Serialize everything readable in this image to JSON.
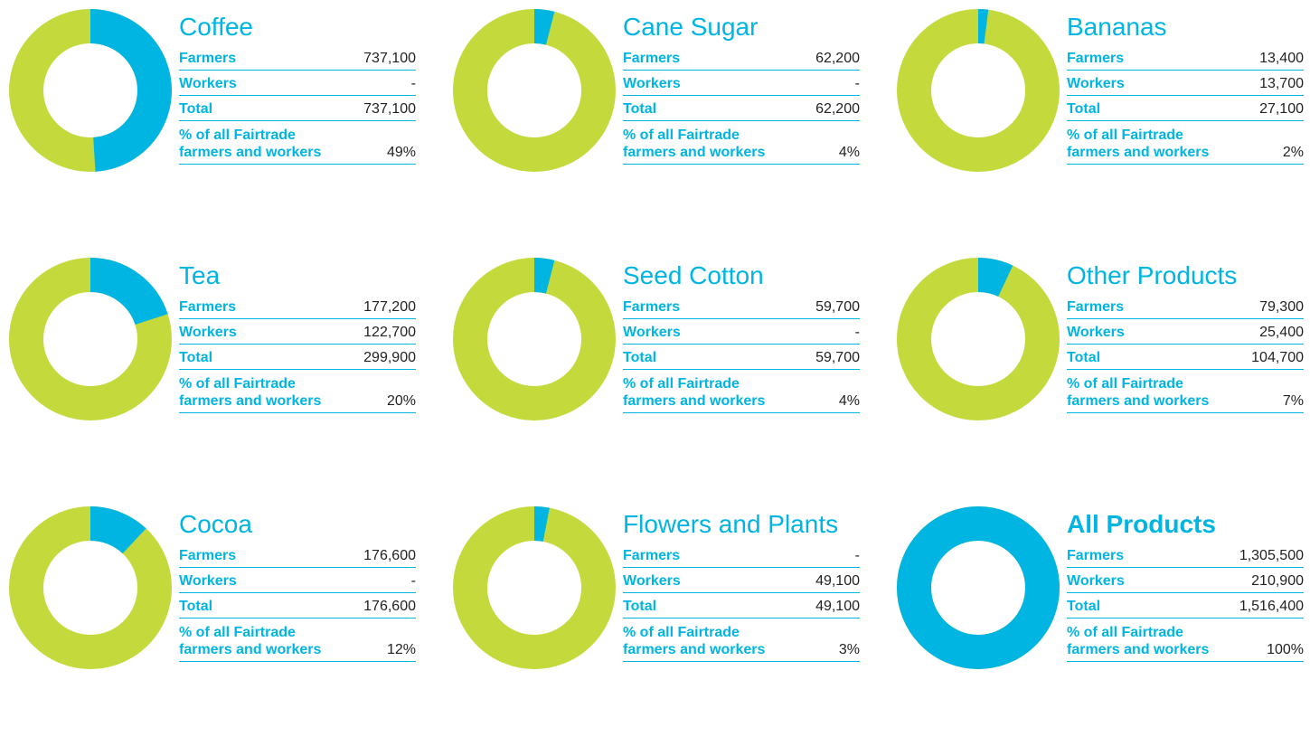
{
  "chart_data": [
    {
      "type": "donut",
      "title": "Coffee",
      "rows": [
        {
          "label": "Farmers",
          "value": "737,100"
        },
        {
          "label": "Workers",
          "value": "-"
        },
        {
          "label": "Total",
          "value": "737,100"
        }
      ],
      "share_label": "% of all Fairtrade farmers and workers",
      "values": [
        49
      ],
      "value_labels": [
        "49%"
      ],
      "colors": [
        "#00b5e2",
        "#c4d93c"
      ]
    },
    {
      "type": "donut",
      "title": "Cane Sugar",
      "rows": [
        {
          "label": "Farmers",
          "value": "62,200"
        },
        {
          "label": "Workers",
          "value": "-"
        },
        {
          "label": "Total",
          "value": "62,200"
        }
      ],
      "share_label": "% of all Fairtrade farmers and workers",
      "values": [
        4
      ],
      "value_labels": [
        "4%"
      ],
      "colors": [
        "#00b5e2",
        "#c4d93c"
      ]
    },
    {
      "type": "donut",
      "title": "Bananas",
      "rows": [
        {
          "label": "Farmers",
          "value": "13,400"
        },
        {
          "label": "Workers",
          "value": "13,700"
        },
        {
          "label": "Total",
          "value": "27,100"
        }
      ],
      "share_label": "% of all Fairtrade farmers and workers",
      "values": [
        2
      ],
      "value_labels": [
        "2%"
      ],
      "colors": [
        "#00b5e2",
        "#c4d93c"
      ]
    },
    {
      "type": "donut",
      "title": "Tea",
      "rows": [
        {
          "label": "Farmers",
          "value": "177,200"
        },
        {
          "label": "Workers",
          "value": "122,700"
        },
        {
          "label": "Total",
          "value": "299,900"
        }
      ],
      "share_label": "% of all Fairtrade farmers and workers",
      "values": [
        20
      ],
      "value_labels": [
        "20%"
      ],
      "colors": [
        "#00b5e2",
        "#c4d93c"
      ]
    },
    {
      "type": "donut",
      "title": "Seed Cotton",
      "rows": [
        {
          "label": "Farmers",
          "value": "59,700"
        },
        {
          "label": "Workers",
          "value": "-"
        },
        {
          "label": "Total",
          "value": "59,700"
        }
      ],
      "share_label": "% of all Fairtrade farmers and workers",
      "values": [
        4
      ],
      "value_labels": [
        "4%"
      ],
      "colors": [
        "#00b5e2",
        "#c4d93c"
      ]
    },
    {
      "type": "donut",
      "title": "Other Products",
      "rows": [
        {
          "label": "Farmers",
          "value": "79,300"
        },
        {
          "label": "Workers",
          "value": "25,400"
        },
        {
          "label": "Total",
          "value": "104,700"
        }
      ],
      "share_label": "% of all Fairtrade farmers and workers",
      "values": [
        7
      ],
      "value_labels": [
        "7%"
      ],
      "colors": [
        "#00b5e2",
        "#c4d93c"
      ]
    },
    {
      "type": "donut",
      "title": "Cocoa",
      "rows": [
        {
          "label": "Farmers",
          "value": "176,600"
        },
        {
          "label": "Workers",
          "value": "-"
        },
        {
          "label": "Total",
          "value": "176,600"
        }
      ],
      "share_label": "% of all Fairtrade farmers and workers",
      "values": [
        12
      ],
      "value_labels": [
        "12%"
      ],
      "colors": [
        "#00b5e2",
        "#c4d93c"
      ]
    },
    {
      "type": "donut",
      "title": "Flowers and Plants",
      "rows": [
        {
          "label": "Farmers",
          "value": "-"
        },
        {
          "label": "Workers",
          "value": "49,100"
        },
        {
          "label": "Total",
          "value": "49,100"
        }
      ],
      "share_label": "% of all Fairtrade farmers and workers",
      "values": [
        3
      ],
      "value_labels": [
        "3%"
      ],
      "colors": [
        "#00b5e2",
        "#c4d93c"
      ]
    },
    {
      "type": "donut",
      "title": "All Products",
      "title_bold": true,
      "rows": [
        {
          "label": "Farmers",
          "value": "1,305,500"
        },
        {
          "label": "Workers",
          "value": "210,900"
        },
        {
          "label": "Total",
          "value": "1,516,400"
        }
      ],
      "share_label": "% of all Fairtrade farmers and workers",
      "values": [
        100
      ],
      "value_labels": [
        "100%"
      ],
      "colors": [
        "#00b5e2",
        "#c4d93c"
      ]
    }
  ]
}
